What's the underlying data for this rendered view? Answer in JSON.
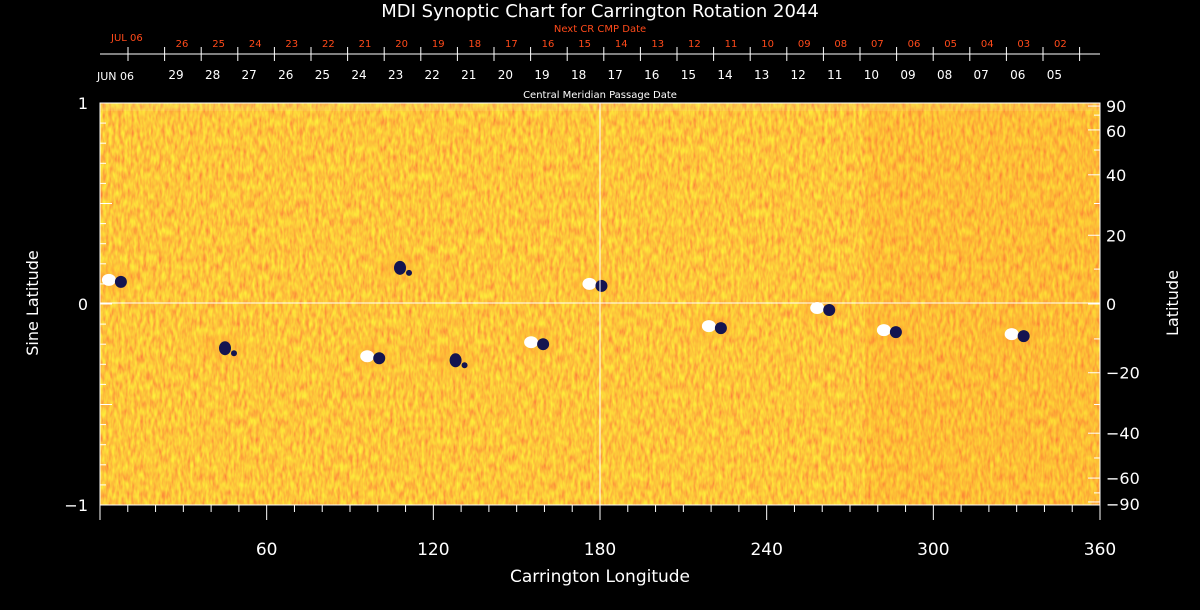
{
  "title": "MDI Synoptic Chart for Carrington Rotation 2044",
  "top_axis": {
    "next_label": "Next CR CMP Date",
    "next_month": "JUL 06",
    "next_days": [
      "26",
      "25",
      "24",
      "23",
      "22",
      "21",
      "20",
      "19",
      "18",
      "17",
      "16",
      "15",
      "14",
      "13",
      "12",
      "11",
      "10",
      "09",
      "08",
      "07",
      "06",
      "05",
      "04",
      "03",
      "02"
    ],
    "cmp_month": "JUN 06",
    "cmp_days": [
      "29",
      "28",
      "27",
      "26",
      "25",
      "24",
      "23",
      "22",
      "21",
      "20",
      "19",
      "18",
      "17",
      "16",
      "15",
      "14",
      "13",
      "12",
      "11",
      "10",
      "09",
      "08",
      "07",
      "06",
      "05"
    ],
    "cmp_label": "Central Meridian Passage Date"
  },
  "left_axis": {
    "label": "Sine Latitude",
    "ticks": [
      {
        "value": 1,
        "label": "1"
      },
      {
        "value": 0,
        "label": "0"
      },
      {
        "value": -1,
        "label": "−1"
      }
    ]
  },
  "right_axis": {
    "label": "Latitude",
    "ticks": [
      {
        "value": 90,
        "label": "90"
      },
      {
        "value": 60,
        "label": "60"
      },
      {
        "value": 40,
        "label": "40"
      },
      {
        "value": 20,
        "label": "20"
      },
      {
        "value": 0,
        "label": "0"
      },
      {
        "value": -20,
        "label": "−20"
      },
      {
        "value": -40,
        "label": "−40"
      },
      {
        "value": -60,
        "label": "−60"
      },
      {
        "value": -90,
        "label": "−90"
      }
    ]
  },
  "bottom_axis": {
    "label": "Carrington Longitude",
    "ticks": [
      {
        "value": 60,
        "label": "60"
      },
      {
        "value": 120,
        "label": "120"
      },
      {
        "value": 180,
        "label": "180"
      },
      {
        "value": 240,
        "label": "240"
      },
      {
        "value": 300,
        "label": "300"
      },
      {
        "value": 360,
        "label": "360"
      }
    ]
  },
  "colors": {
    "background": "#000000",
    "field_base": "#ee5a10",
    "field_light": "#ffb030",
    "positive_polarity": "#ffffff",
    "negative_polarity": "#141450",
    "next_date_text": "#ff4a1a",
    "axis": "#ffffff"
  },
  "regions": [
    {
      "name": "active-region",
      "lon": 5,
      "sinlat": 0.12,
      "polarity": "bipolar"
    },
    {
      "name": "active-region",
      "lon": 108,
      "sinlat": 0.18,
      "polarity": "negative"
    },
    {
      "name": "active-region",
      "lon": 178,
      "sinlat": 0.1,
      "polarity": "bipolar"
    },
    {
      "name": "active-region",
      "lon": 221,
      "sinlat": -0.11,
      "polarity": "bipolar"
    },
    {
      "name": "active-region",
      "lon": 260,
      "sinlat": -0.02,
      "polarity": "bipolar"
    },
    {
      "name": "active-region",
      "lon": 284,
      "sinlat": -0.13,
      "polarity": "bipolar"
    },
    {
      "name": "active-region",
      "lon": 330,
      "sinlat": -0.15,
      "polarity": "bipolar"
    },
    {
      "name": "active-region",
      "lon": 157,
      "sinlat": -0.19,
      "polarity": "bipolar"
    },
    {
      "name": "active-region",
      "lon": 98,
      "sinlat": -0.26,
      "polarity": "bipolar"
    },
    {
      "name": "active-region",
      "lon": 128,
      "sinlat": -0.28,
      "polarity": "negative"
    },
    {
      "name": "active-region",
      "lon": 45,
      "sinlat": -0.22,
      "polarity": "negative"
    }
  ]
}
